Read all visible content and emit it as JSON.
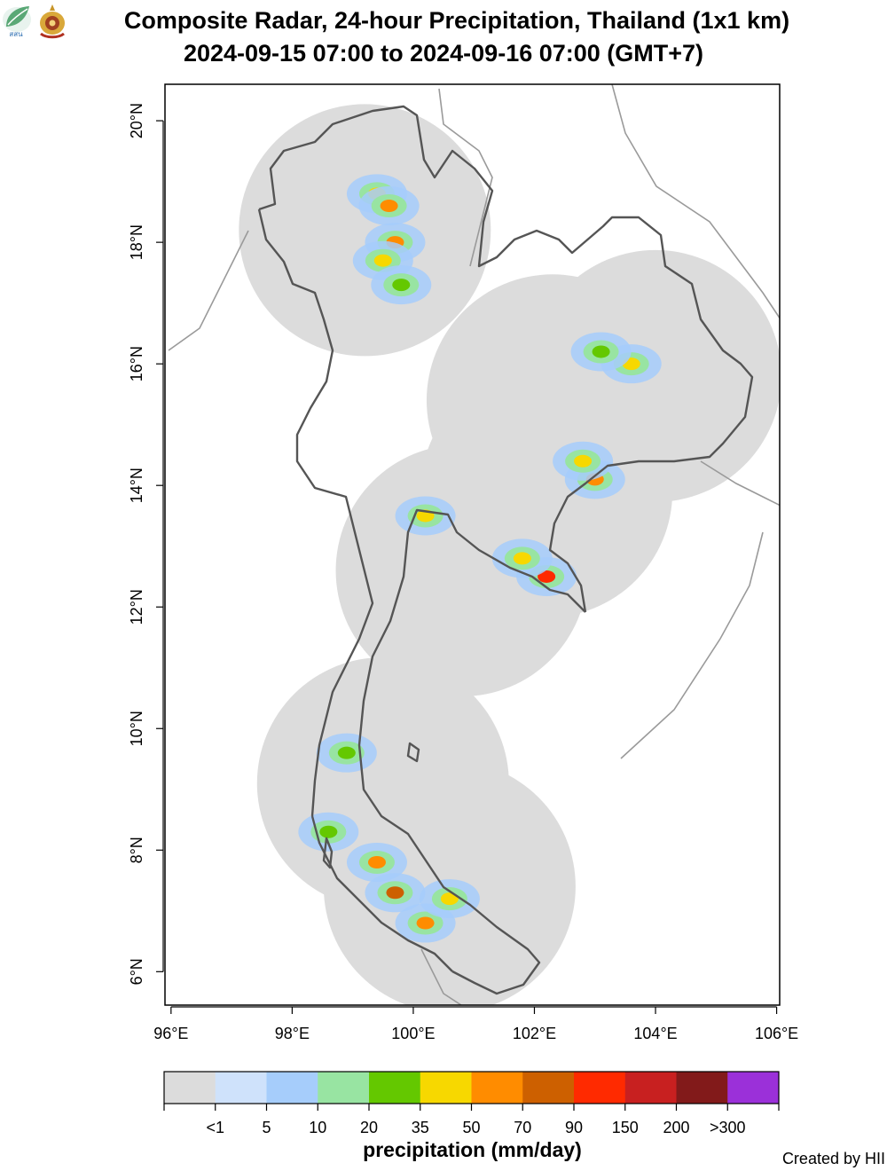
{
  "header": {
    "title": "Composite Radar, 24-hour Precipitation, Thailand (1x1 km)",
    "subtitle": "2024-09-15 07:00 to 2024-09-16 07:00 (GMT+7)",
    "logos": [
      "hii-leaf-logo",
      "royal-emblem-logo"
    ],
    "logo_text": "สสน"
  },
  "map": {
    "lon_ticks": [
      "96°E",
      "98°E",
      "100°E",
      "102°E",
      "104°E",
      "106°E"
    ],
    "lat_ticks": [
      "6°N",
      "8°N",
      "10°N",
      "12°N",
      "14°N",
      "16°N",
      "18°N",
      "20°N"
    ],
    "lon_range": [
      95.9,
      106.05
    ],
    "lat_range": [
      5.45,
      20.6
    ],
    "radar_coverage_color": "#dcdcdc",
    "radar_sites": [
      {
        "lon": 99.2,
        "lat": 18.2
      },
      {
        "lon": 102.3,
        "lat": 15.4
      },
      {
        "lon": 104.0,
        "lat": 15.8
      },
      {
        "lon": 100.8,
        "lat": 12.6
      },
      {
        "lon": 99.5,
        "lat": 9.1
      },
      {
        "lon": 100.6,
        "lat": 7.4
      },
      {
        "lon": 102.2,
        "lat": 13.9
      }
    ],
    "rain_cells": [
      {
        "lon": 99.4,
        "lat": 18.8,
        "mm": 35
      },
      {
        "lon": 99.6,
        "lat": 18.6,
        "mm": 50
      },
      {
        "lon": 99.7,
        "lat": 18.0,
        "mm": 50
      },
      {
        "lon": 99.5,
        "lat": 17.7,
        "mm": 35
      },
      {
        "lon": 99.8,
        "lat": 17.3,
        "mm": 20
      },
      {
        "lon": 103.6,
        "lat": 16.0,
        "mm": 35
      },
      {
        "lon": 103.1,
        "lat": 16.2,
        "mm": 20
      },
      {
        "lon": 103.0,
        "lat": 14.1,
        "mm": 50
      },
      {
        "lon": 102.8,
        "lat": 14.4,
        "mm": 35
      },
      {
        "lon": 102.2,
        "lat": 12.5,
        "mm": 90
      },
      {
        "lon": 101.8,
        "lat": 12.8,
        "mm": 35
      },
      {
        "lon": 100.2,
        "lat": 13.5,
        "mm": 35
      },
      {
        "lon": 98.9,
        "lat": 9.6,
        "mm": 20
      },
      {
        "lon": 99.4,
        "lat": 7.8,
        "mm": 50
      },
      {
        "lon": 99.7,
        "lat": 7.3,
        "mm": 70
      },
      {
        "lon": 100.2,
        "lat": 6.8,
        "mm": 50
      },
      {
        "lon": 98.6,
        "lat": 8.3,
        "mm": 20
      },
      {
        "lon": 100.6,
        "lat": 7.2,
        "mm": 35
      }
    ]
  },
  "legend": {
    "title": "precipitation (mm/day)",
    "labels": [
      "<1",
      "5",
      "10",
      "20",
      "35",
      "50",
      "70",
      "90",
      "150",
      "200",
      ">300"
    ],
    "colors": [
      "#dcdcdc",
      "#cfe2fb",
      "#a6cdfb",
      "#98e4a2",
      "#64c800",
      "#f7d800",
      "#ff8c00",
      "#cd6000",
      "#ff2a00",
      "#c82020",
      "#821a1a",
      "#9b30d9"
    ]
  },
  "footer": {
    "credit": "Created by HII"
  }
}
